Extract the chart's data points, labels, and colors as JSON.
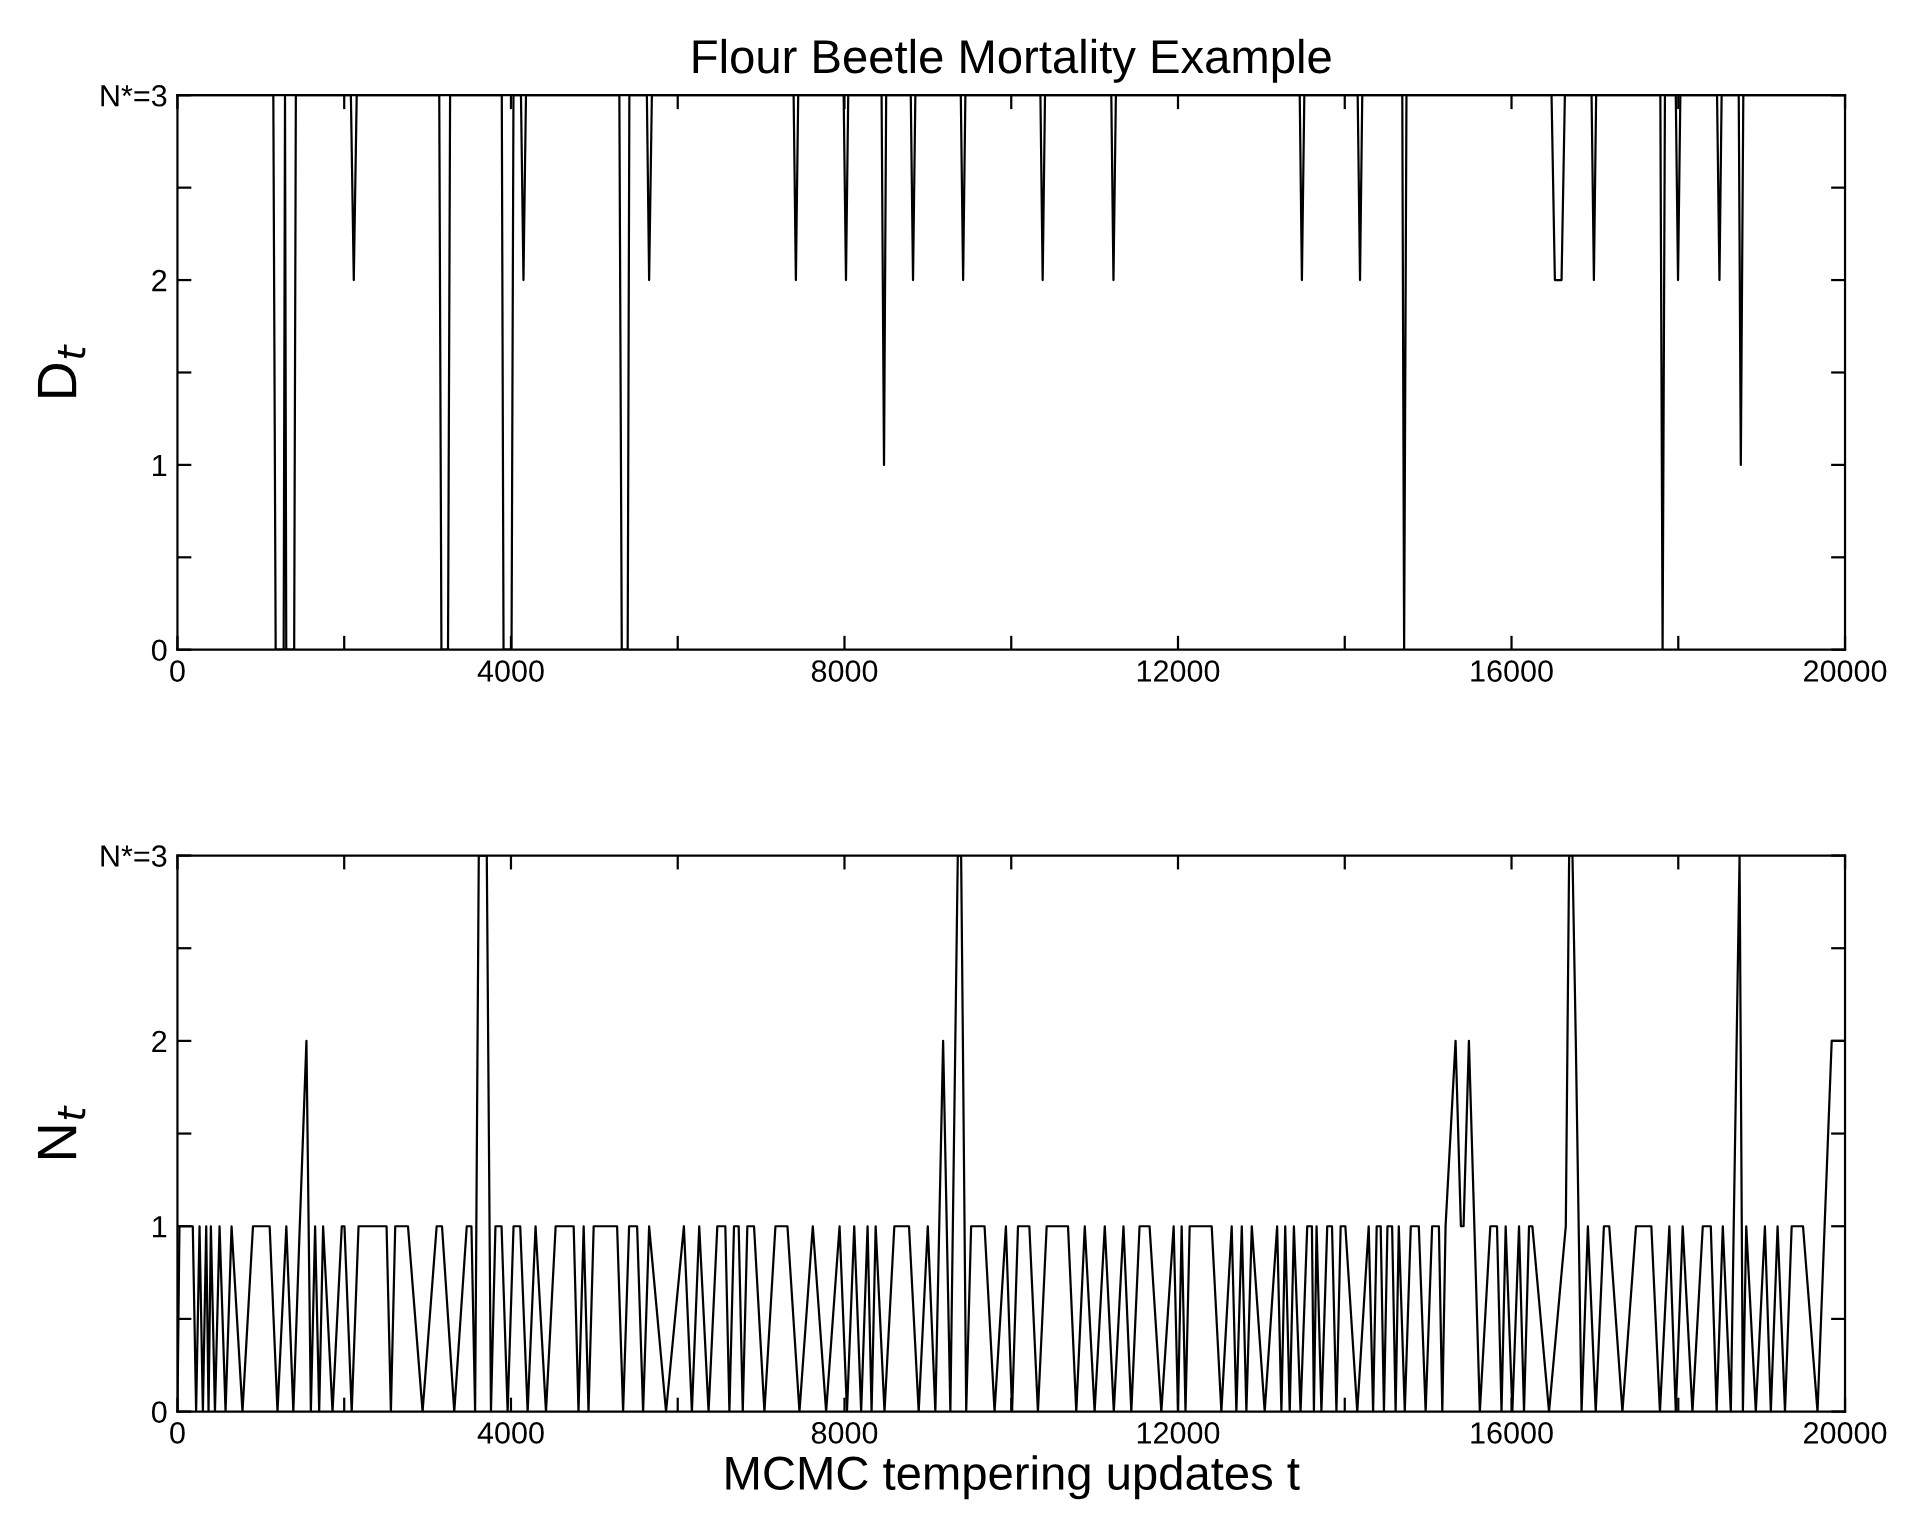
{
  "chart_data": [
    {
      "type": "line",
      "title": "Flour Beetle Mortality Example",
      "ylabel": "D$_{t}$",
      "xlim": [
        0,
        20000
      ],
      "ylim": [
        0,
        3
      ],
      "xticks": [
        0,
        {
          "value": 2000,
          "label": null
        },
        4000,
        {
          "value": 6000,
          "label": null
        },
        8000,
        {
          "value": 10000,
          "label": null
        },
        12000,
        {
          "value": 14000,
          "label": null
        },
        16000,
        {
          "value": 18000,
          "label": null
        },
        20000
      ],
      "yticks": [
        0,
        {
          "value": 0.5,
          "label": null
        },
        1,
        {
          "value": 1.5,
          "label": null
        },
        2,
        {
          "value": 2.5,
          "label": null
        },
        {
          "value": 3,
          "label": "N*=3"
        }
      ],
      "grid": false,
      "marker": "none",
      "line_style": "solid",
      "series": [
        {
          "color": "#000000",
          "x": [
            0,
            1150,
            1178,
            1274,
            1290,
            1305,
            1400,
            1420,
            2080,
            2115,
            2150,
            3140,
            3166,
            3245,
            3270,
            3890,
            3911,
            4007,
            4030,
            4120,
            4150,
            4180,
            5300,
            5329,
            5400,
            5420,
            5630,
            5657,
            5690,
            7390,
            7417,
            7445,
            7990,
            8018,
            8045,
            8445,
            8474,
            8500,
            8795,
            8822,
            8850,
            9395,
            9423,
            9450,
            10350,
            10377,
            10405,
            11200,
            11226,
            11255,
            13460,
            13486,
            13515,
            14155,
            14183,
            14210,
            14690,
            14712,
            14740,
            16480,
            16520,
            16600,
            16640,
            16960,
            16988,
            17015,
            17785,
            17812,
            17840,
            17970,
            17997,
            18025,
            18465,
            18494,
            18520,
            18725,
            18750,
            18780,
            20000
          ],
          "values": [
            3,
            3,
            0,
            0,
            3,
            0,
            0,
            3,
            3,
            2,
            3,
            3,
            0,
            0,
            3,
            3,
            0,
            0,
            3,
            3,
            2,
            3,
            3,
            0,
            0,
            3,
            3,
            2,
            3,
            3,
            2,
            3,
            3,
            2,
            3,
            3,
            1,
            3,
            3,
            2,
            3,
            3,
            2,
            3,
            3,
            2,
            3,
            3,
            2,
            3,
            3,
            2,
            3,
            3,
            2,
            3,
            3,
            0,
            3,
            3,
            2,
            2,
            3,
            3,
            2,
            3,
            3,
            0,
            3,
            3,
            2,
            3,
            3,
            2,
            3,
            3,
            1,
            3,
            3
          ]
        }
      ]
    },
    {
      "type": "line",
      "ylabel": "N$_{t}$",
      "xlabel": "MCMC tempering updates t",
      "xlim": [
        0,
        20000
      ],
      "ylim": [
        0,
        3
      ],
      "xticks": [
        0,
        {
          "value": 2000,
          "label": null
        },
        4000,
        {
          "value": 6000,
          "label": null
        },
        8000,
        {
          "value": 10000,
          "label": null
        },
        12000,
        {
          "value": 14000,
          "label": null
        },
        16000,
        {
          "value": 18000,
          "label": null
        },
        20000
      ],
      "yticks": [
        0,
        {
          "value": 0.5,
          "label": null
        },
        1,
        {
          "value": 1.5,
          "label": null
        },
        2,
        {
          "value": 2.5,
          "label": null
        },
        {
          "value": 3,
          "label": "N*=3"
        }
      ],
      "grid": false,
      "marker": "none",
      "line_style": "solid",
      "series": [
        {
          "color": "#000000",
          "x": [
            0,
            24,
            184,
            224,
            265,
            305,
            345,
            373,
            401,
            450,
            505,
            577,
            649,
            780,
            906,
            1106,
            1200,
            1306,
            1390,
            1467,
            1547,
            1600,
            1651,
            1700,
            1747,
            1860,
            1971,
            2003,
            2090,
            2172,
            2508,
            2560,
            2612,
            2765,
            2940,
            3109,
            3173,
            3320,
            3470,
            3526,
            3570,
            3614,
            3710,
            3760,
            3814,
            3887,
            3960,
            4031,
            4111,
            4200,
            4295,
            4420,
            4536,
            4752,
            4810,
            4872,
            4930,
            4992,
            5273,
            5345,
            5417,
            5513,
            5585,
            5657,
            5860,
            6074,
            6170,
            6258,
            6370,
            6475,
            6571,
            6620,
            6675,
            6731,
            6780,
            6835,
            6915,
            7040,
            7172,
            7316,
            7460,
            7620,
            7780,
            7941,
            8030,
            8117,
            8200,
            8277,
            8325,
            8374,
            8480,
            8598,
            8774,
            8890,
            8999,
            9090,
            9183,
            9270,
            9359,
            9399,
            9420,
            9460,
            9519,
            9680,
            9800,
            9936,
            10010,
            10081,
            10217,
            10320,
            10425,
            10681,
            10780,
            10882,
            11000,
            11122,
            11230,
            11346,
            11440,
            11539,
            11659,
            11800,
            11948,
            12000,
            12044,
            12090,
            12140,
            12404,
            12520,
            12644,
            12700,
            12765,
            12820,
            12885,
            13040,
            13189,
            13240,
            13286,
            13340,
            13390,
            13470,
            13550,
            13606,
            13630,
            13662,
            13720,
            13790,
            13847,
            13900,
            13951,
            14007,
            14150,
            14287,
            14340,
            14383,
            14431,
            14470,
            14512,
            14568,
            14610,
            14648,
            14720,
            14792,
            14888,
            14970,
            15048,
            15129,
            15170,
            15209,
            15329,
            15393,
            15425,
            15489,
            15620,
            15746,
            15826,
            15880,
            15930,
            16010,
            16090,
            16150,
            16210,
            16250,
            16450,
            16651,
            16691,
            16731,
            16771,
            16840,
            16916,
            17010,
            17108,
            17172,
            17330,
            17493,
            17677,
            17780,
            17893,
            17970,
            18053,
            18170,
            18294,
            18390,
            18460,
            18534,
            18630,
            18735,
            18775,
            18815,
            18930,
            19039,
            19110,
            19191,
            19280,
            19360,
            19496,
            19670,
            19840,
            20000
          ],
          "values": [
            0,
            1,
            1,
            0,
            1,
            0,
            1,
            0,
            1,
            0,
            1,
            0,
            1,
            0,
            1,
            1,
            0,
            1,
            0,
            1,
            2,
            0,
            1,
            0,
            1,
            0,
            1,
            1,
            0,
            1,
            1,
            0,
            1,
            1,
            0,
            1,
            1,
            0,
            1,
            1,
            0,
            3,
            3,
            0,
            1,
            1,
            0,
            1,
            1,
            0,
            1,
            0,
            1,
            1,
            0,
            1,
            0,
            1,
            1,
            0,
            1,
            1,
            0,
            1,
            0,
            1,
            0,
            1,
            0,
            1,
            1,
            0,
            1,
            1,
            0,
            1,
            1,
            0,
            1,
            1,
            0,
            1,
            0,
            1,
            0,
            1,
            0,
            1,
            0,
            1,
            0,
            1,
            1,
            0,
            1,
            0,
            2,
            0,
            3,
            3,
            2,
            0,
            1,
            1,
            0,
            1,
            0,
            1,
            1,
            0,
            1,
            1,
            0,
            1,
            0,
            1,
            0,
            1,
            0,
            1,
            1,
            0,
            1,
            0,
            1,
            0,
            1,
            1,
            0,
            1,
            0,
            1,
            0,
            1,
            0,
            1,
            0,
            1,
            0,
            1,
            0,
            1,
            1,
            0,
            1,
            0,
            1,
            1,
            0,
            1,
            1,
            0,
            1,
            0,
            1,
            1,
            0,
            1,
            1,
            0,
            1,
            0,
            1,
            1,
            0,
            1,
            1,
            0,
            1,
            2,
            1,
            1,
            2,
            0,
            1,
            1,
            0,
            1,
            0,
            1,
            0,
            1,
            1,
            0,
            1,
            3,
            3,
            2,
            0,
            1,
            0,
            1,
            1,
            0,
            1,
            1,
            0,
            1,
            0,
            1,
            0,
            1,
            1,
            0,
            1,
            0,
            3,
            0,
            1,
            0,
            1,
            0,
            1,
            0,
            1,
            1,
            0,
            2,
            2
          ]
        }
      ]
    }
  ]
}
